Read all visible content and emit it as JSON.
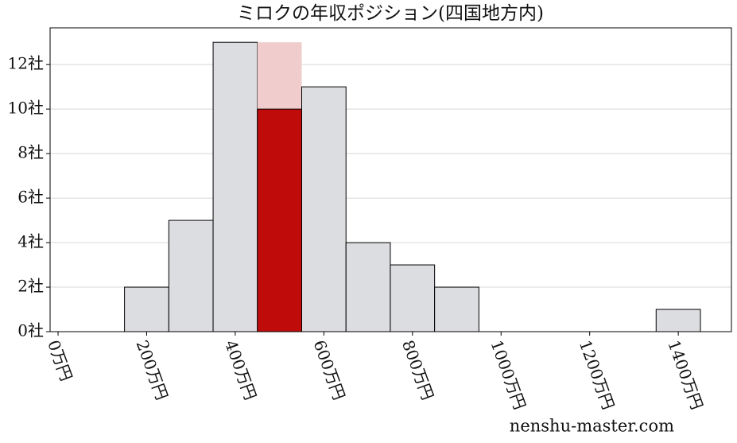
{
  "chart_data": {
    "type": "histogram",
    "title": "ミロクの年収ポジション(四国地方内)",
    "bins": [
      -50,
      50,
      150,
      250,
      350,
      450,
      550,
      650,
      750,
      850,
      950,
      1050,
      1150,
      1250,
      1350,
      1450
    ],
    "values": [
      0,
      0,
      2,
      5,
      13,
      13,
      11,
      4,
      3,
      2,
      0,
      0,
      0,
      0,
      1
    ],
    "color": "#dcdde0",
    "highlight": {
      "bin": 5,
      "value": 10,
      "color": "#c00b0b",
      "bin_color": "#f0cccc"
    },
    "xlim": [
      -18,
      1520
    ],
    "ylim": [
      0,
      13.65
    ],
    "xticks": [
      {
        "value": 0,
        "label": "0万円"
      },
      {
        "value": 200,
        "label": "200万円"
      },
      {
        "value": 400,
        "label": "400万円"
      },
      {
        "value": 600,
        "label": "600万円"
      },
      {
        "value": 800,
        "label": "800万円"
      },
      {
        "value": 1000,
        "label": "1000万円"
      },
      {
        "value": 1200,
        "label": "1200万円"
      },
      {
        "value": 1400,
        "label": "1400万円"
      }
    ],
    "yticks": [
      {
        "value": 0,
        "label": "0社"
      },
      {
        "value": 2,
        "label": "2社"
      },
      {
        "value": 4,
        "label": "4社"
      },
      {
        "value": 6,
        "label": "6社"
      },
      {
        "value": 8,
        "label": "8社"
      },
      {
        "value": 10,
        "label": "10社"
      },
      {
        "value": 12,
        "label": "12社"
      }
    ],
    "grid": true,
    "watermark": "nenshu-master.com"
  }
}
